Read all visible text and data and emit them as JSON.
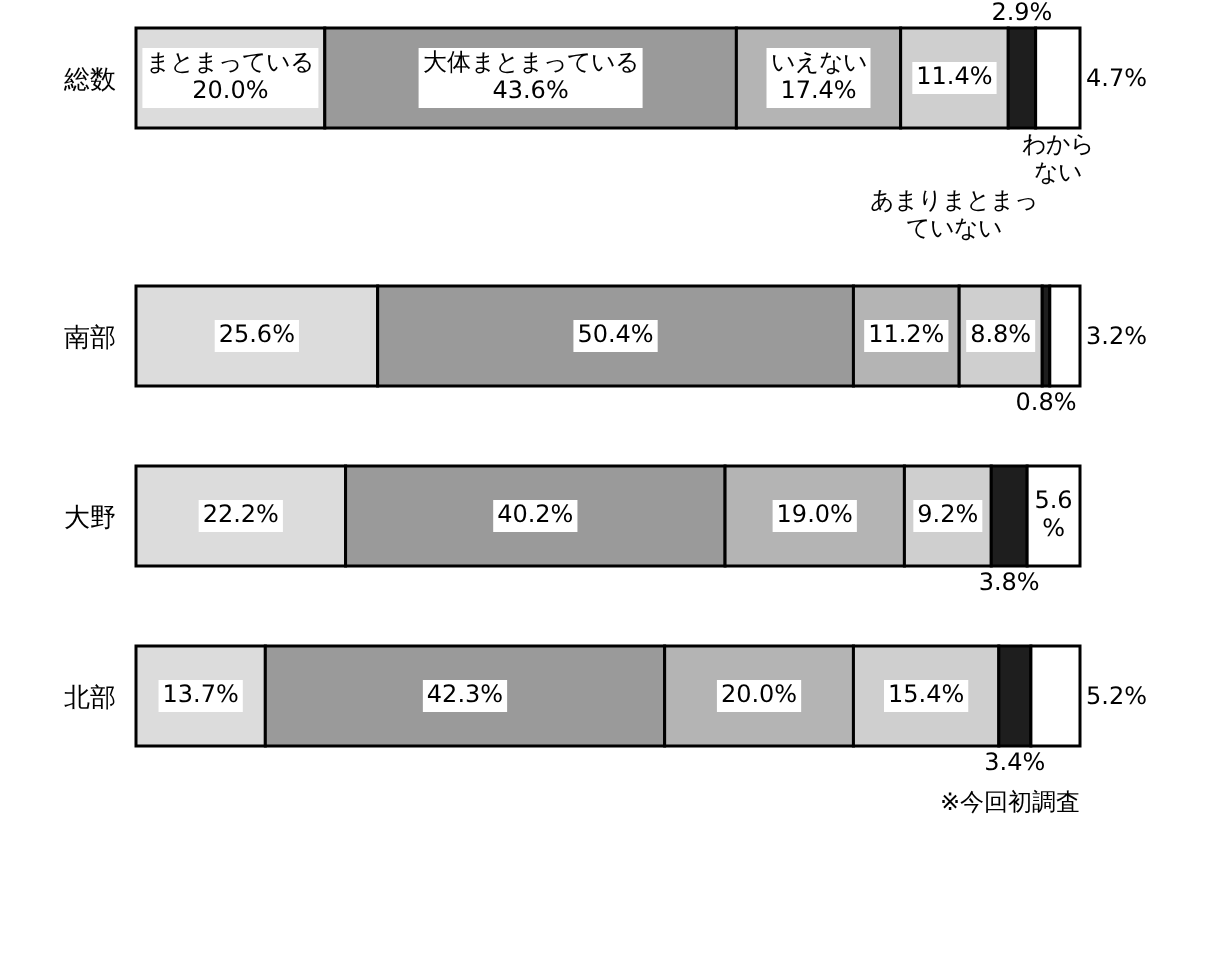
{
  "chart_data": {
    "type": "bar",
    "orientation": "horizontal",
    "stacked": true,
    "categories": [
      "総数",
      "南部",
      "大野",
      "北部"
    ],
    "series": [
      {
        "name": "まとまっている",
        "color": "#dcdcdc",
        "values": [
          20.0,
          25.6,
          22.2,
          13.7
        ],
        "value_labels": [
          "20.0%",
          "25.6%",
          "22.2%",
          "13.7%"
        ]
      },
      {
        "name": "大体まとまっている",
        "color": "#9a9a9a",
        "values": [
          43.6,
          50.4,
          40.2,
          42.3
        ],
        "value_labels": [
          "43.6%",
          "50.4%",
          "40.2%",
          "42.3%"
        ]
      },
      {
        "name": "いえない",
        "color": "#b4b4b4",
        "values": [
          17.4,
          11.2,
          19.0,
          20.0
        ],
        "value_labels": [
          "17.4%",
          "11.2%",
          "19.0%",
          "20.0%"
        ]
      },
      {
        "name": "あまりまとまっていない",
        "color": "#cfcfcf",
        "values": [
          11.4,
          8.8,
          9.2,
          15.4
        ],
        "value_labels": [
          "11.4%",
          "8.8%",
          "9.2%",
          "15.4%"
        ]
      },
      {
        "color": "#1e1e1e",
        "values": [
          2.9,
          0.8,
          3.8,
          3.4
        ],
        "value_labels": [
          "2.9%",
          "0.8%",
          "3.8%",
          "3.4%"
        ]
      },
      {
        "name": "わからない",
        "color": "#ffffff",
        "values": [
          4.7,
          3.2,
          5.6,
          5.2
        ],
        "value_labels": [
          "4.7%",
          "3.2%",
          "5.6%",
          "5.2%"
        ]
      }
    ],
    "annotations": [
      "※今回初調査"
    ]
  }
}
